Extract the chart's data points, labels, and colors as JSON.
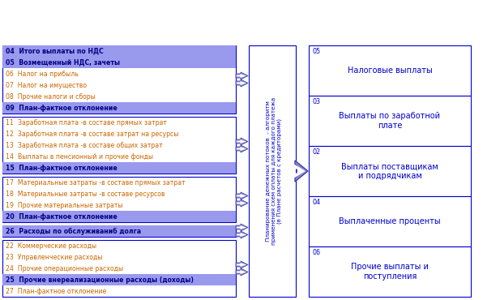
{
  "bg_color": "#ffffff",
  "box_border": "#0000cd",
  "highlight_color": "#9999ee",
  "text_normal_color": "#cc6600",
  "text_highlight_color": "#000080",
  "arrow_fill": "#8888cc",
  "arrow_border": "#4444aa",
  "left_groups": [
    {
      "rows": [
        {
          "text": "04  Итого выплаты по НДС",
          "highlight": true
        },
        {
          "text": "05  Возмещенный НДС, зачеты",
          "highlight": true
        },
        {
          "text": "06  Налог на прибыль",
          "highlight": false
        },
        {
          "text": "07  Налог на имущество",
          "highlight": false
        },
        {
          "text": "08  Прочие налоги и сборы",
          "highlight": false
        },
        {
          "text": "09  План-фактное отклонение",
          "highlight": true
        }
      ]
    },
    {
      "rows": [
        {
          "text": "11  Заработная плата -в составе прямых затрат",
          "highlight": false
        },
        {
          "text": "12  Заработная плата -в составе затрат на ресурсы",
          "highlight": false
        },
        {
          "text": "13  Заработная плата -в составе общих затрат",
          "highlight": false
        },
        {
          "text": "14  Выплаты в пенсионный и прочие фонды",
          "highlight": false
        },
        {
          "text": "15  План-фактное отклонение",
          "highlight": true
        }
      ]
    },
    {
      "rows": [
        {
          "text": "17  Материальные затраты -в составе прямых затрат",
          "highlight": false
        },
        {
          "text": "18  Материальные затраты -в составе ресурсов",
          "highlight": false
        },
        {
          "text": "19  Прочие материальные затраты",
          "highlight": false
        },
        {
          "text": "20  План-фактное отклонение",
          "highlight": true
        }
      ]
    },
    {
      "rows": [
        {
          "text": "26  Расходы по обслуживаниб долга",
          "highlight": true
        }
      ]
    },
    {
      "rows": [
        {
          "text": "22  Коммерческие расходы",
          "highlight": false
        },
        {
          "text": "23  Управленческие расходы",
          "highlight": false
        },
        {
          "text": "24  Прочие операционные расходы",
          "highlight": false
        },
        {
          "text": "25  Прочие внереализационные расходы (доходы)",
          "highlight": true
        },
        {
          "text": "27  План-фактное отклонение",
          "highlight": false
        }
      ]
    }
  ],
  "center_text": "Планирование денежных потоков  - алгоритм\nприменения схем оплаты для каждого платежа\n(в Плане расчетов с кредиторами)",
  "right_boxes": [
    {
      "num": "05",
      "text": "Налоговые выплаты"
    },
    {
      "num": "03",
      "text": "Выплаты по заработной\nплате"
    },
    {
      "num": "02",
      "text": "Выплаты поставщикам\nи подрядчикам"
    },
    {
      "num": "04",
      "text": "Выплаченные проценты"
    },
    {
      "num": "06",
      "text": "Прочие выплаты и\nпоступления"
    }
  ]
}
